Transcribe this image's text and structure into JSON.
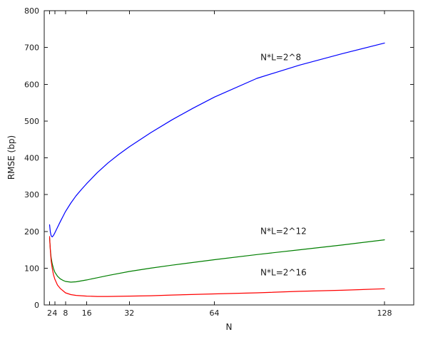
{
  "figure": {
    "background": "#ffffff",
    "axis_color": "#1a1a1a"
  },
  "chart_data": {
    "type": "line",
    "title": "",
    "xlabel": "N",
    "ylabel": "RMSE (bp)",
    "xlim": [
      0,
      139
    ],
    "ylim": [
      0,
      800
    ],
    "xticks": [
      2,
      4,
      8,
      16,
      32,
      64,
      128
    ],
    "yticks": [
      0,
      100,
      200,
      300,
      400,
      500,
      600,
      700,
      800
    ],
    "grid": false,
    "legend_position": "none",
    "series": [
      {
        "name": "N*L=2^8",
        "color": "#0000ff",
        "x": [
          2,
          2.3,
          2.6,
          3,
          3.5,
          4,
          5,
          6,
          7,
          8,
          10,
          12,
          14,
          16,
          20,
          24,
          28,
          32,
          40,
          48,
          56,
          64,
          80,
          96,
          112,
          128
        ],
        "values": [
          218,
          198,
          188,
          185,
          189,
          196,
          211,
          226,
          240,
          254,
          277,
          297,
          314,
          330,
          360,
          386,
          409,
          430,
          468,
          503,
          535,
          565,
          616,
          652,
          683,
          712
        ]
      },
      {
        "name": "N*L=2^12",
        "color": "#007f00",
        "x": [
          2,
          2.3,
          2.6,
          3,
          3.5,
          4,
          5,
          6,
          7,
          8,
          10,
          12,
          16,
          20,
          24,
          32,
          40,
          48,
          64,
          80,
          96,
          112,
          128
        ],
        "values": [
          182,
          150,
          128,
          112,
          99,
          89,
          78,
          71,
          67,
          64,
          62,
          63,
          68,
          74,
          80,
          91,
          100,
          108,
          123,
          137,
          150,
          163,
          177
        ]
      },
      {
        "name": "N*L=2^16",
        "color": "#ff0000",
        "x": [
          2,
          2.3,
          2.6,
          3,
          3.5,
          4,
          5,
          6,
          8,
          10,
          12,
          16,
          20,
          24,
          32,
          40,
          48,
          64,
          80,
          96,
          112,
          128
        ],
        "values": [
          186,
          148,
          120,
          100,
          82,
          70,
          54,
          45,
          33,
          28,
          26,
          24,
          23,
          23,
          24,
          25,
          27,
          30,
          33,
          37,
          40,
          44
        ]
      }
    ],
    "annotations": [
      {
        "text": "N*L=2^8",
        "x": 89,
        "y": 665,
        "color": "#000000"
      },
      {
        "text": "N*L=2^12",
        "x": 90,
        "y": 193,
        "color": "#000000"
      },
      {
        "text": "N*L=2^16",
        "x": 90,
        "y": 80,
        "color": "#000000"
      }
    ]
  }
}
